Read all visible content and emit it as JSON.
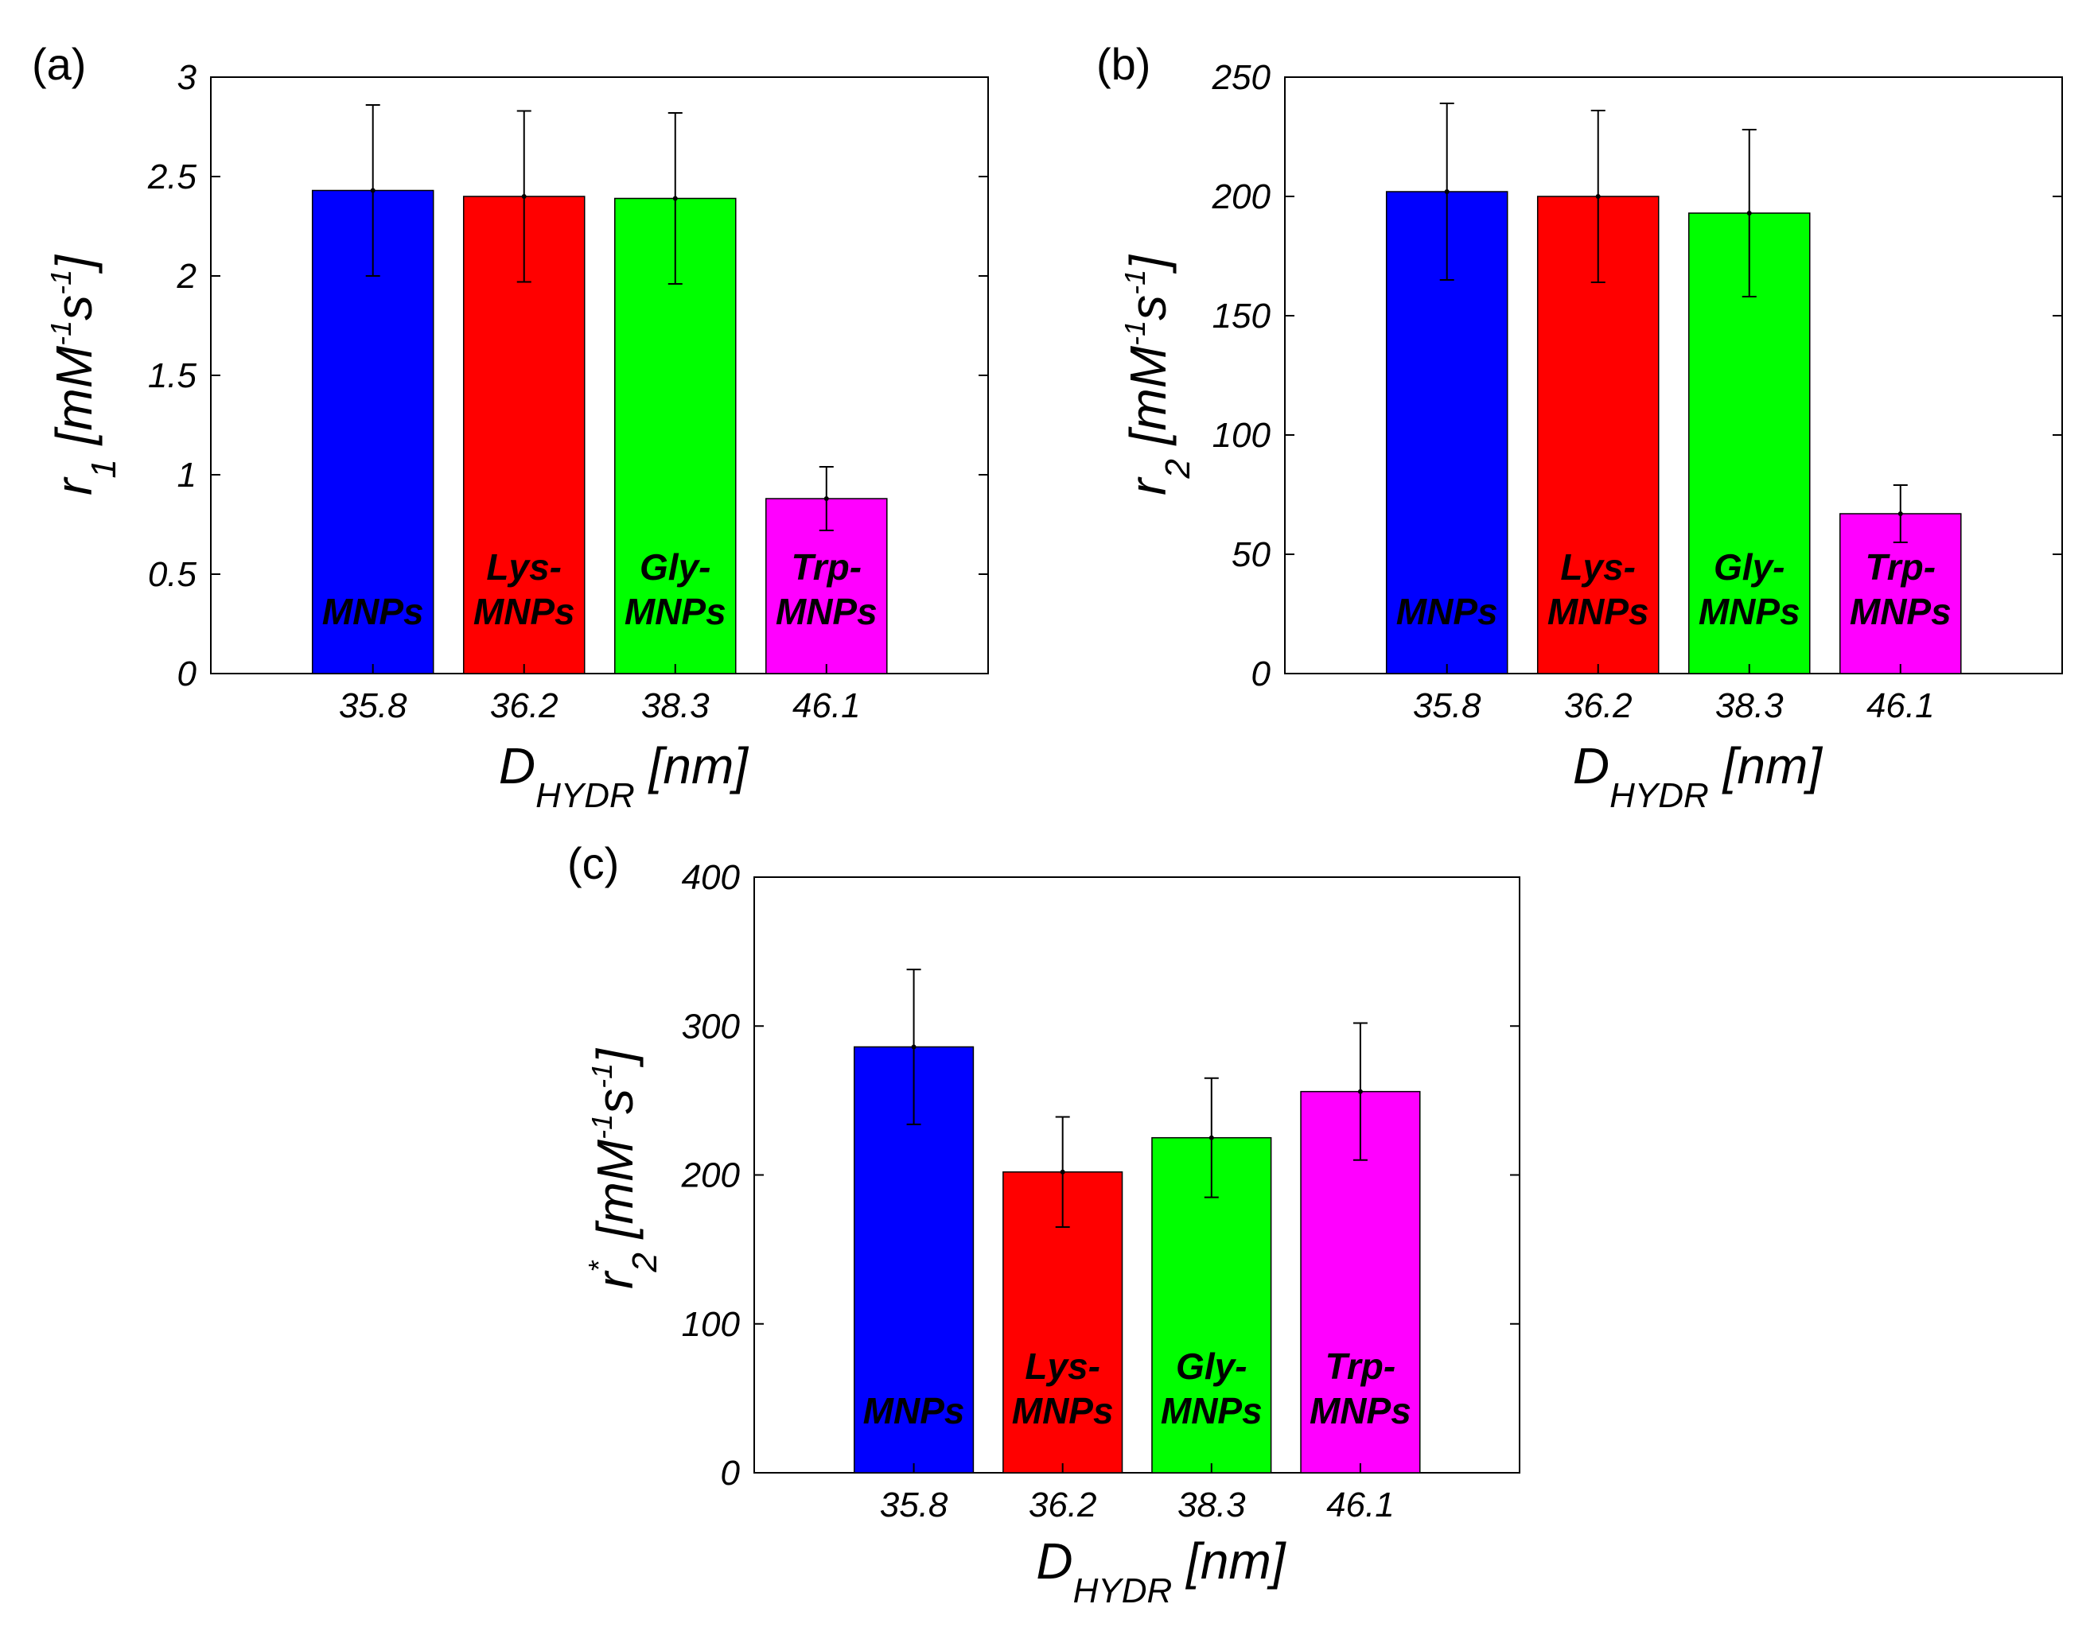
{
  "chart_data": [
    {
      "panel": "(a)",
      "type": "bar",
      "categories": [
        "35.8",
        "36.2",
        "38.3",
        "46.1"
      ],
      "bar_labels": [
        [
          "MNPs"
        ],
        [
          "Lys-",
          "MNPs"
        ],
        [
          "Gly-",
          "MNPs"
        ],
        [
          "Trp-",
          "MNPs"
        ]
      ],
      "values": [
        2.43,
        2.4,
        2.39,
        0.88
      ],
      "errors": [
        0.43,
        0.43,
        0.43,
        0.16
      ],
      "colors": [
        "#0000FF",
        "#FF0000",
        "#00FF00",
        "#FF00FF"
      ],
      "ylim": [
        0,
        3
      ],
      "yticks": [
        "0",
        "0.5",
        "1",
        "1.5",
        "2",
        "2.5",
        "3"
      ],
      "ylabel": {
        "base": "r",
        "sub": "1",
        "unit_a": " [mM",
        "sup_a": "-1",
        "unit_b": "s",
        "sup_b": "-1",
        "unit_c": "]"
      },
      "xlabel": {
        "base": "D",
        "sub": "HYDR",
        "unit": " [nm]"
      }
    },
    {
      "panel": "(b)",
      "type": "bar",
      "categories": [
        "35.8",
        "36.2",
        "38.3",
        "46.1"
      ],
      "bar_labels": [
        [
          "MNPs"
        ],
        [
          "Lys-",
          "MNPs"
        ],
        [
          "Gly-",
          "MNPs"
        ],
        [
          "Trp-",
          "MNPs"
        ]
      ],
      "values": [
        202,
        200,
        193,
        67
      ],
      "errors": [
        37,
        36,
        35,
        12
      ],
      "colors": [
        "#0000FF",
        "#FF0000",
        "#00FF00",
        "#FF00FF"
      ],
      "ylim": [
        0,
        250
      ],
      "yticks": [
        "0",
        "50",
        "100",
        "150",
        "200",
        "250"
      ],
      "ylabel": {
        "base": "r",
        "sub": "2",
        "unit_a": " [mM",
        "sup_a": "-1",
        "unit_b": "s",
        "sup_b": "-1",
        "unit_c": "]"
      },
      "xlabel": {
        "base": "D",
        "sub": "HYDR",
        "unit": " [nm]"
      }
    },
    {
      "panel": "(c)",
      "type": "bar",
      "categories": [
        "35.8",
        "36.2",
        "38.3",
        "46.1"
      ],
      "bar_labels": [
        [
          "MNPs"
        ],
        [
          "Lys-",
          "MNPs"
        ],
        [
          "Gly-",
          "MNPs"
        ],
        [
          "Trp-",
          "MNPs"
        ]
      ],
      "values": [
        286,
        202,
        225,
        256
      ],
      "errors": [
        52,
        37,
        40,
        46
      ],
      "colors": [
        "#0000FF",
        "#FF0000",
        "#00FF00",
        "#FF00FF"
      ],
      "ylim": [
        0,
        400
      ],
      "yticks": [
        "0",
        "100",
        "200",
        "300",
        "400"
      ],
      "ylabel": {
        "base": "r",
        "sub": "2",
        "star": "*",
        "unit_a": " [mM",
        "sup_a": "-1",
        "unit_b": "s",
        "sup_b": "-1",
        "unit_c": "]"
      },
      "xlabel": {
        "base": "D",
        "sub": "HYDR",
        "unit": " [nm]"
      }
    }
  ]
}
